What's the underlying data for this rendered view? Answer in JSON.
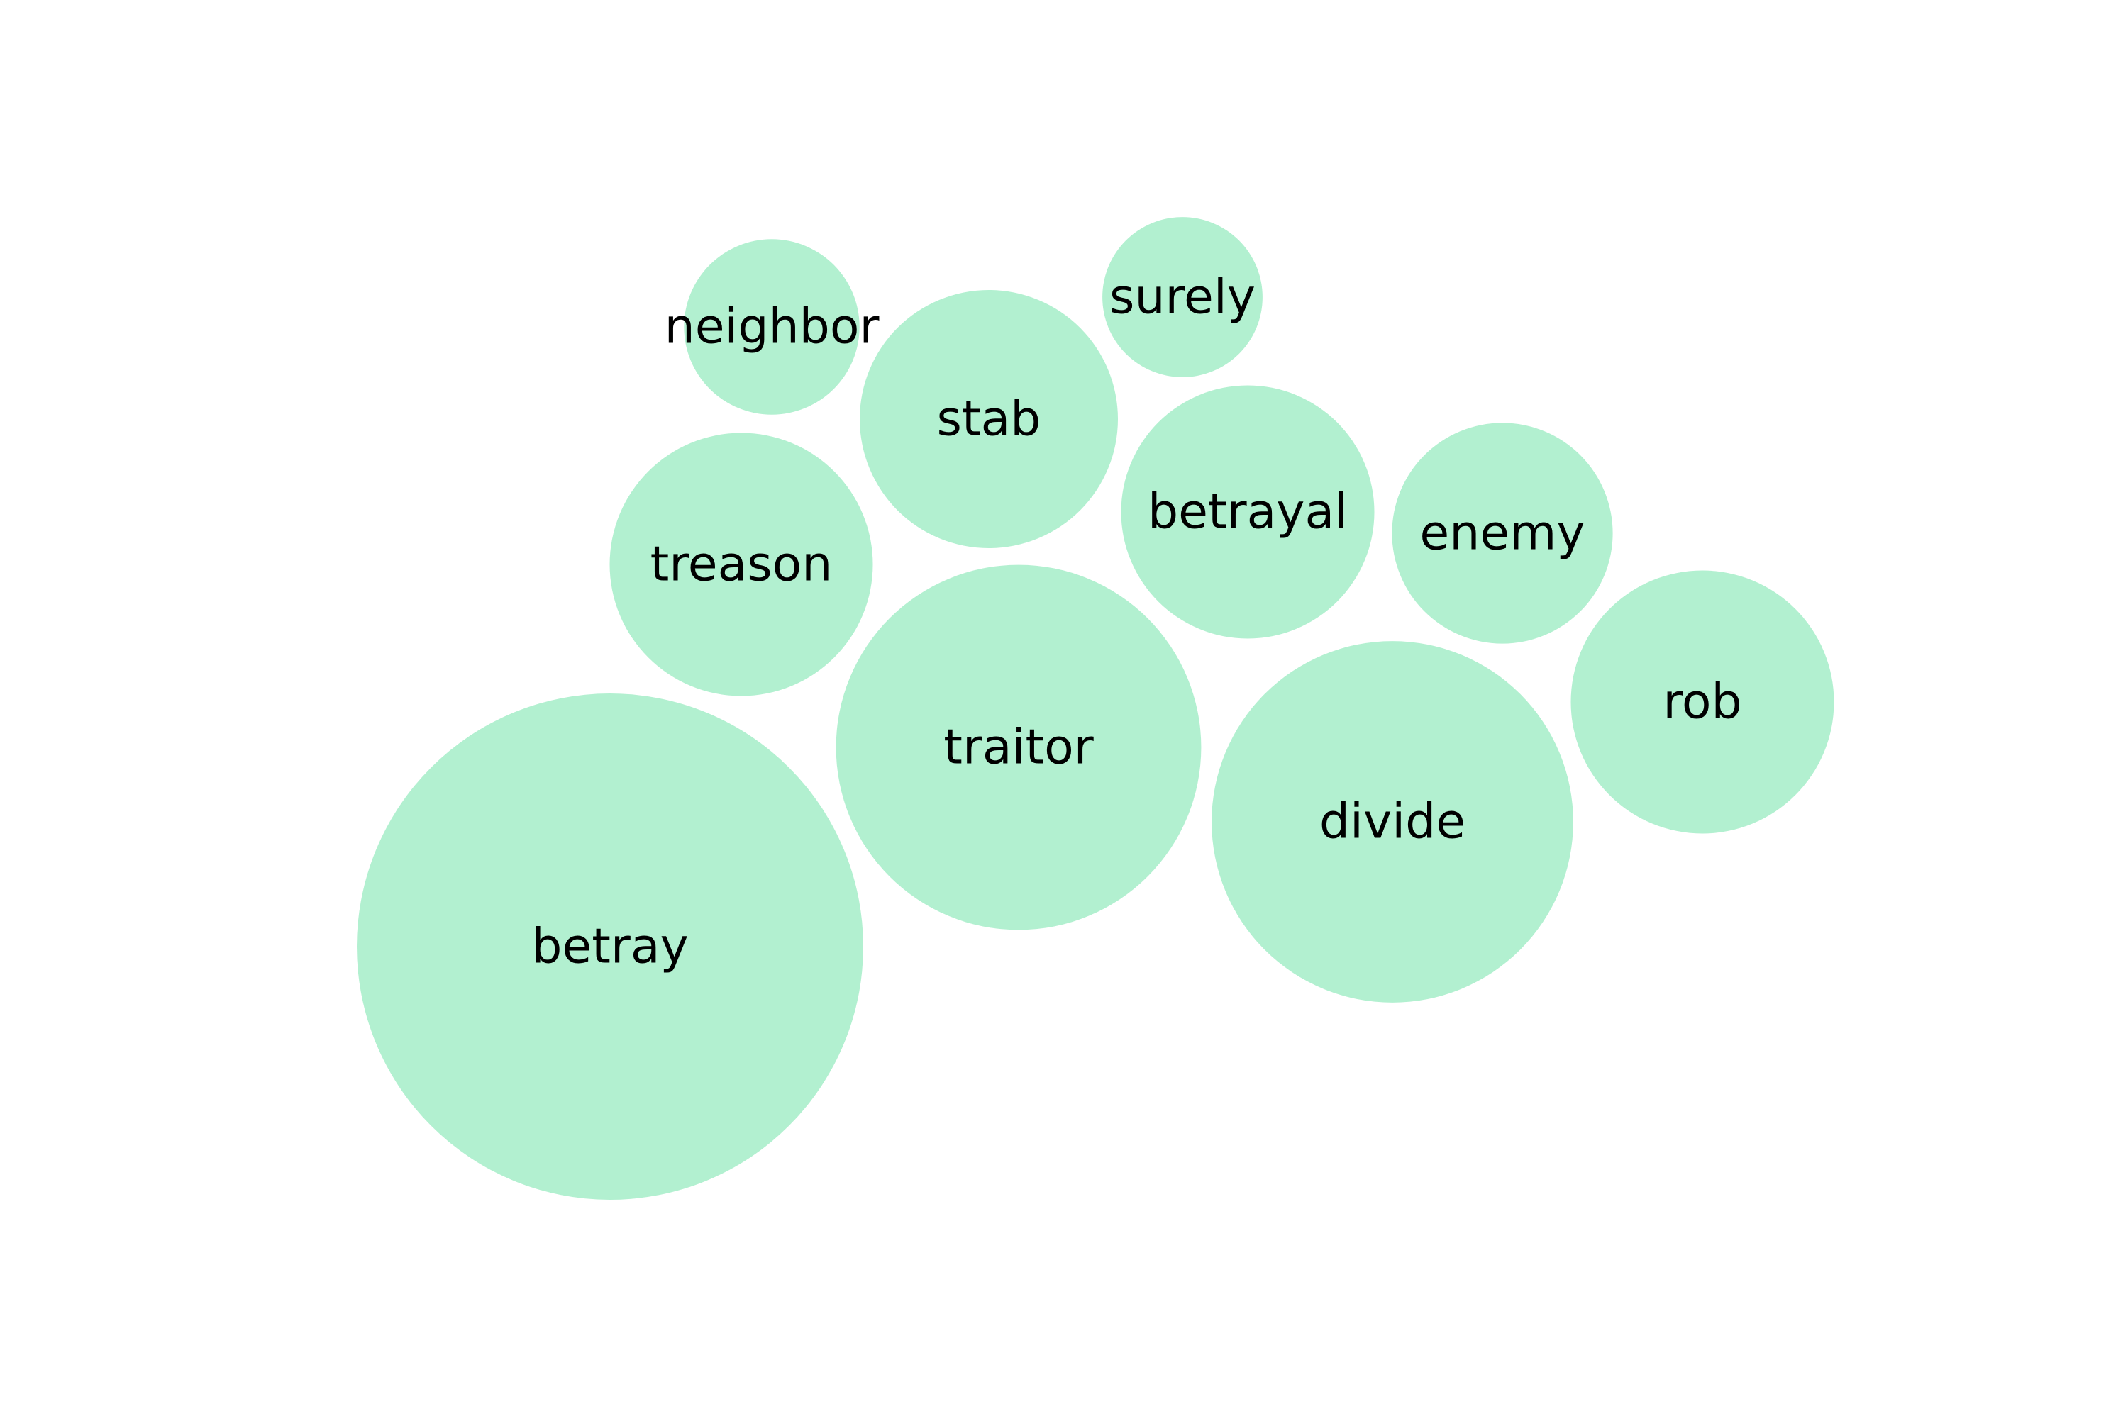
{
  "chart_data": {
    "type": "bubble",
    "title": "",
    "bubble_color": "#b2f0d0",
    "label_color": "#000000",
    "bubbles": [
      {
        "label": "betray",
        "value": 100
      },
      {
        "label": "traitor",
        "value": 52
      },
      {
        "label": "divide",
        "value": 51
      },
      {
        "label": "treason",
        "value": 27
      },
      {
        "label": "rob",
        "value": 27
      },
      {
        "label": "stab",
        "value": 26
      },
      {
        "label": "betrayal",
        "value": 25
      },
      {
        "label": "enemy",
        "value": 19
      },
      {
        "label": "neighbor",
        "value": 12
      },
      {
        "label": "surely",
        "value": 10
      }
    ]
  }
}
